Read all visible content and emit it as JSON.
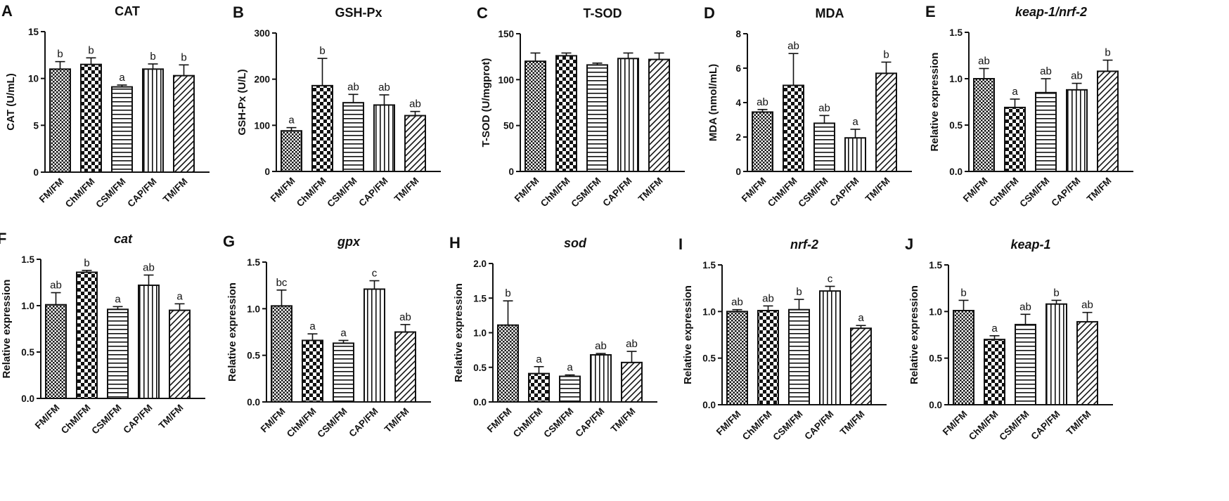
{
  "chart_data": [
    {
      "panel": "A",
      "type": "bar",
      "title": "CAT",
      "title_italic": false,
      "ylabel": "CAT (U/mL)",
      "categories": [
        "FM/FM",
        "ChM/FM",
        "CSM/FM",
        "CAP/FM",
        "TM/FM"
      ],
      "values": [
        11.0,
        11.5,
        9.1,
        11.0,
        10.3
      ],
      "errors": [
        0.8,
        0.7,
        0.2,
        0.55,
        1.15
      ],
      "letters": [
        "b",
        "b",
        "a",
        "b",
        "b"
      ],
      "ylim": [
        0,
        15
      ],
      "yticks": [
        0,
        5,
        10,
        15
      ],
      "tick_labels": [
        "0",
        "5",
        "10",
        "15"
      ]
    },
    {
      "panel": "B",
      "type": "bar",
      "title": "GSH-Px",
      "title_italic": false,
      "ylabel": "GSH-Px (U/L)",
      "categories": [
        "FM/FM",
        "ChM/FM",
        "CSM/FM",
        "CAP/FM",
        "TM/FM"
      ],
      "values": [
        88,
        186,
        149,
        144,
        121
      ],
      "errors": [
        7,
        59,
        18,
        22,
        9
      ],
      "letters": [
        "a",
        "b",
        "ab",
        "ab",
        "ab"
      ],
      "ylim": [
        0,
        300
      ],
      "yticks": [
        0,
        100,
        200,
        300
      ],
      "tick_labels": [
        "0",
        "100",
        "200",
        "300"
      ]
    },
    {
      "panel": "C",
      "type": "bar",
      "title": "T-SOD",
      "title_italic": false,
      "ylabel": "T-SOD (U/mgprot)",
      "categories": [
        "FM/FM",
        "ChM/FM",
        "CSM/FM",
        "CAP/FM",
        "TM/FM"
      ],
      "values": [
        120,
        126,
        116,
        123,
        122
      ],
      "errors": [
        9,
        3,
        2,
        6,
        7
      ],
      "letters": [
        "",
        "",
        "",
        "",
        ""
      ],
      "ylim": [
        0,
        150
      ],
      "yticks": [
        0,
        50,
        100,
        150
      ],
      "tick_labels": [
        "0",
        "50",
        "100",
        "150"
      ]
    },
    {
      "panel": "D",
      "type": "bar",
      "title": "MDA",
      "title_italic": false,
      "ylabel": "MDA (nmol/mL)",
      "categories": [
        "FM/FM",
        "ChM/FM",
        "CSM/FM",
        "CAP/FM",
        "TM/FM"
      ],
      "values": [
        3.45,
        5.0,
        2.8,
        1.95,
        5.7
      ],
      "errors": [
        0.15,
        1.85,
        0.45,
        0.5,
        0.65
      ],
      "letters": [
        "ab",
        "ab",
        "ab",
        "a",
        "b"
      ],
      "ylim": [
        0,
        8
      ],
      "yticks": [
        0,
        2,
        4,
        6,
        8
      ],
      "tick_labels": [
        "0",
        "2",
        "4",
        "6",
        "8"
      ]
    },
    {
      "panel": "E",
      "type": "bar",
      "title": "keap-1/nrf-2",
      "title_italic": true,
      "ylabel": "Relative expression",
      "categories": [
        "FM/FM",
        "ChM/FM",
        "CSM/FM",
        "CAP/FM",
        "TM/FM"
      ],
      "values": [
        1.0,
        0.69,
        0.85,
        0.88,
        1.08
      ],
      "errors": [
        0.11,
        0.09,
        0.15,
        0.07,
        0.12
      ],
      "letters": [
        "ab",
        "a",
        "ab",
        "ab",
        "b"
      ],
      "ylim": [
        0,
        1.5
      ],
      "yticks": [
        0,
        0.5,
        1.0,
        1.5
      ],
      "tick_labels": [
        "0.0",
        "0.5",
        "1.0",
        "1.5"
      ]
    },
    {
      "panel": "F",
      "type": "bar",
      "title": "cat",
      "title_italic": true,
      "ylabel": "Relative expression",
      "categories": [
        "FM/FM",
        "ChM/FM",
        "CSM/FM",
        "CAP/FM",
        "TM/FM"
      ],
      "values": [
        1.01,
        1.36,
        0.96,
        1.22,
        0.95
      ],
      "errors": [
        0.13,
        0.02,
        0.03,
        0.11,
        0.07
      ],
      "letters": [
        "ab",
        "b",
        "a",
        "ab",
        "a"
      ],
      "ylim": [
        0,
        1.5
      ],
      "yticks": [
        0,
        0.5,
        1.0,
        1.5
      ],
      "tick_labels": [
        "0.0",
        "0.5",
        "1.0",
        "1.5"
      ]
    },
    {
      "panel": "G",
      "type": "bar",
      "title": "gpx",
      "title_italic": true,
      "ylabel": "Relative expression",
      "categories": [
        "FM/FM",
        "ChM/FM",
        "CSM/FM",
        "CAP/FM",
        "TM/FM"
      ],
      "values": [
        1.03,
        0.66,
        0.63,
        1.21,
        0.75
      ],
      "errors": [
        0.17,
        0.07,
        0.03,
        0.09,
        0.08
      ],
      "letters": [
        "bc",
        "a",
        "a",
        "c",
        "ab"
      ],
      "ylim": [
        0,
        1.5
      ],
      "yticks": [
        0,
        0.5,
        1.0,
        1.5
      ],
      "tick_labels": [
        "0.0",
        "0.5",
        "1.0",
        "1.5"
      ]
    },
    {
      "panel": "H",
      "type": "bar",
      "title": "sod",
      "title_italic": true,
      "ylabel": "Relative expression",
      "categories": [
        "FM/FM",
        "ChM/FM",
        "CSM/FM",
        "CAP/FM",
        "TM/FM"
      ],
      "values": [
        1.11,
        0.41,
        0.37,
        0.68,
        0.57
      ],
      "errors": [
        0.35,
        0.1,
        0.02,
        0.02,
        0.16
      ],
      "letters": [
        "b",
        "a",
        "a",
        "ab",
        "ab"
      ],
      "ylim": [
        0,
        2.0
      ],
      "yticks": [
        0,
        0.5,
        1.0,
        1.5,
        2.0
      ],
      "tick_labels": [
        "0.0",
        "0.5",
        "1.0",
        "1.5",
        "2.0"
      ]
    },
    {
      "panel": "I",
      "type": "bar",
      "title": "nrf-2",
      "title_italic": true,
      "ylabel": "Relative expression",
      "categories": [
        "FM/FM",
        "ChM/FM",
        "CSM/FM",
        "CAP/FM",
        "TM/FM"
      ],
      "values": [
        1.0,
        1.01,
        1.02,
        1.22,
        0.82
      ],
      "errors": [
        0.02,
        0.05,
        0.11,
        0.05,
        0.03
      ],
      "letters": [
        "ab",
        "ab",
        "b",
        "c",
        "a"
      ],
      "ylim": [
        0,
        1.5
      ],
      "yticks": [
        0,
        0.5,
        1.0,
        1.5
      ],
      "tick_labels": [
        "0.0",
        "0.5",
        "1.0",
        "1.5"
      ]
    },
    {
      "panel": "J",
      "type": "bar",
      "title": "keap-1",
      "title_italic": true,
      "ylabel": "Relative expression",
      "categories": [
        "FM/FM",
        "ChM/FM",
        "CSM/FM",
        "CAP/FM",
        "TM/FM"
      ],
      "values": [
        1.01,
        0.7,
        0.86,
        1.08,
        0.89
      ],
      "errors": [
        0.11,
        0.04,
        0.11,
        0.04,
        0.1
      ],
      "letters": [
        "b",
        "a",
        "ab",
        "b",
        "ab"
      ],
      "ylim": [
        0,
        1.5
      ],
      "yticks": [
        0,
        0.5,
        1.0,
        1.5
      ],
      "tick_labels": [
        "0.0",
        "0.5",
        "1.0",
        "1.5"
      ]
    }
  ],
  "bar_patterns": [
    "pattern-dense-check",
    "pattern-checkerboard",
    "pattern-horizontal-lines",
    "pattern-vertical-lines",
    "pattern-diagonal-lines"
  ],
  "colors": {
    "ink": "#111111",
    "background": "#ffffff"
  }
}
